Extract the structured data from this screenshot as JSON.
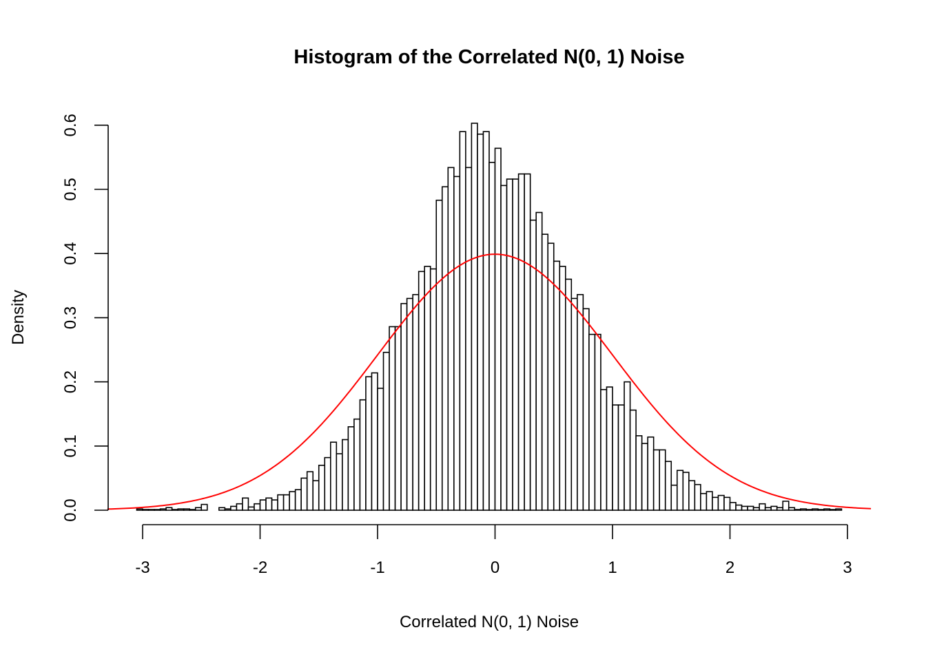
{
  "chart_data": {
    "type": "bar",
    "title": "Histogram of the Correlated N(0, 1) Noise",
    "xlabel": "Correlated N(0, 1) Noise",
    "ylabel": "Density",
    "xlim": [
      -3.3,
      3.2
    ],
    "ylim": [
      0,
      0.6
    ],
    "x_ticks": [
      "-3",
      "-2",
      "-1",
      "0",
      "1",
      "2",
      "3"
    ],
    "x_tick_values": [
      -3,
      -2,
      -1,
      0,
      1,
      2,
      3
    ],
    "y_ticks": [
      "0.0",
      "0.1",
      "0.2",
      "0.3",
      "0.4",
      "0.5",
      "0.6"
    ],
    "y_tick_values": [
      0,
      0.1,
      0.2,
      0.3,
      0.4,
      0.5,
      0.6
    ],
    "grid": false,
    "bin_start": -3.05,
    "bin_width": 0.05,
    "densities": [
      0.002,
      0.001,
      0.001,
      0.001,
      0.002,
      0.004,
      0.001,
      0.002,
      0.002,
      0.001,
      0.004,
      0.009,
      0.0,
      0.0,
      0.004,
      0.002,
      0.006,
      0.01,
      0.019,
      0.005,
      0.01,
      0.016,
      0.019,
      0.016,
      0.024,
      0.024,
      0.029,
      0.032,
      0.05,
      0.06,
      0.046,
      0.07,
      0.082,
      0.106,
      0.088,
      0.11,
      0.13,
      0.142,
      0.172,
      0.208,
      0.214,
      0.19,
      0.246,
      0.286,
      0.286,
      0.322,
      0.33,
      0.336,
      0.372,
      0.38,
      0.376,
      0.483,
      0.504,
      0.534,
      0.52,
      0.59,
      0.534,
      0.603,
      0.586,
      0.59,
      0.542,
      0.564,
      0.506,
      0.516,
      0.516,
      0.524,
      0.524,
      0.452,
      0.464,
      0.43,
      0.416,
      0.388,
      0.38,
      0.36,
      0.33,
      0.336,
      0.314,
      0.274,
      0.274,
      0.188,
      0.192,
      0.164,
      0.164,
      0.2,
      0.156,
      0.116,
      0.104,
      0.114,
      0.094,
      0.094,
      0.076,
      0.039,
      0.062,
      0.059,
      0.046,
      0.04,
      0.026,
      0.029,
      0.02,
      0.023,
      0.02,
      0.012,
      0.008,
      0.006,
      0.006,
      0.004,
      0.01,
      0.004,
      0.006,
      0.004,
      0.014,
      0.004,
      0.001,
      0.002,
      0.001,
      0.002,
      0.001,
      0.002,
      0.001,
      0.002
    ],
    "overlay": {
      "type": "line",
      "function": "standard normal density N(0, 1)",
      "x_range": [
        -3.3,
        3.2
      ],
      "color": "#ff0000"
    },
    "bar_fill": "#ffffff",
    "bar_stroke": "#000000"
  }
}
